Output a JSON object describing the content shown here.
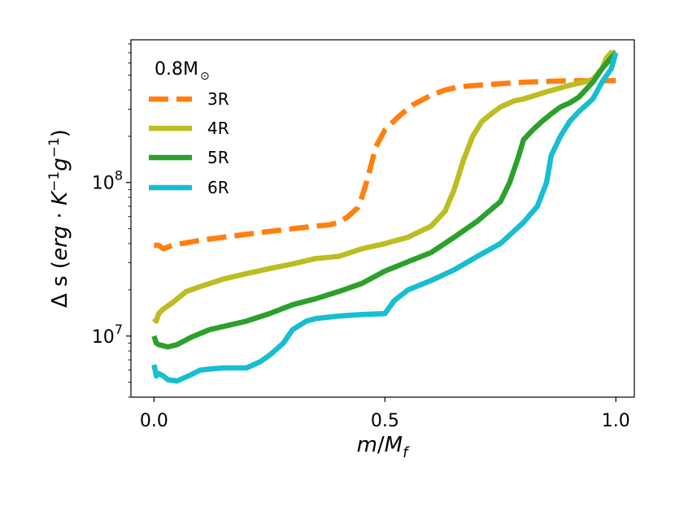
{
  "chart_data": {
    "type": "line",
    "xlabel": {
      "m": "m",
      "slash": "/",
      "M": "M",
      "sub": "f"
    },
    "ylabel": {
      "prefix": "Δ s (",
      "erg": "erg",
      "dot": " · ",
      "K": "K",
      "Kexp": "−1",
      "g": "g",
      "gexp": "−1",
      "suffix": ")"
    },
    "xlim": [
      -0.05,
      1.04
    ],
    "ylim": [
      4000000,
      850000000
    ],
    "yscale": "log",
    "xticks": [
      {
        "value": 0.0,
        "label": "0.0"
      },
      {
        "value": 0.5,
        "label": "0.5"
      },
      {
        "value": 1.0,
        "label": "1.0"
      }
    ],
    "yticks": [
      {
        "value": 10000000,
        "base": "10",
        "exp": "7"
      },
      {
        "value": 100000000,
        "base": "10",
        "exp": "8"
      }
    ],
    "legend": {
      "title": {
        "text": "0.8M",
        "symbol": "⊙"
      },
      "placement": "upper-left",
      "entries": [
        "3R",
        "4R",
        "5R",
        "6R"
      ]
    },
    "series": [
      {
        "name": "3R",
        "color": "#ff7f0e",
        "dash": "dashed",
        "x": [
          0.0,
          0.01,
          0.02,
          0.04,
          0.06,
          0.1,
          0.15,
          0.2,
          0.25,
          0.3,
          0.35,
          0.38,
          0.4,
          0.42,
          0.44,
          0.45,
          0.46,
          0.47,
          0.48,
          0.5,
          0.53,
          0.56,
          0.6,
          0.63,
          0.66,
          0.7,
          0.75,
          0.8,
          0.85,
          0.9,
          0.95,
          1.0
        ],
        "y": [
          39000000,
          39000000,
          37000000,
          39000000,
          40000000,
          42000000,
          44000000,
          46000000,
          48000000,
          50000000,
          52000000,
          53000000,
          55000000,
          60000000,
          68000000,
          80000000,
          100000000,
          130000000,
          170000000,
          220000000,
          270000000,
          320000000,
          370000000,
          400000000,
          420000000,
          430000000,
          440000000,
          450000000,
          455000000,
          460000000,
          460000000,
          460000000
        ]
      },
      {
        "name": "4R",
        "color": "#bcbd22",
        "dash": "solid",
        "x": [
          0.0,
          0.005,
          0.01,
          0.02,
          0.04,
          0.07,
          0.1,
          0.15,
          0.2,
          0.25,
          0.3,
          0.35,
          0.4,
          0.45,
          0.5,
          0.55,
          0.6,
          0.63,
          0.65,
          0.67,
          0.69,
          0.71,
          0.73,
          0.75,
          0.78,
          0.8,
          0.85,
          0.9,
          0.93,
          0.95,
          0.97,
          0.98,
          0.99,
          1.0
        ],
        "y": [
          13000000,
          12500000,
          14000000,
          15000000,
          16500000,
          19500000,
          21000000,
          23500000,
          25500000,
          27500000,
          29500000,
          32000000,
          33000000,
          37000000,
          40000000,
          44000000,
          52000000,
          65000000,
          90000000,
          140000000,
          200000000,
          250000000,
          280000000,
          310000000,
          340000000,
          350000000,
          390000000,
          430000000,
          450000000,
          470000000,
          550000000,
          650000000,
          700000000,
          700000000
        ]
      },
      {
        "name": "5R",
        "color": "#2ca02c",
        "dash": "solid",
        "x": [
          0.0,
          0.005,
          0.01,
          0.03,
          0.05,
          0.08,
          0.12,
          0.2,
          0.25,
          0.3,
          0.35,
          0.4,
          0.45,
          0.5,
          0.55,
          0.6,
          0.65,
          0.7,
          0.75,
          0.77,
          0.79,
          0.8,
          0.82,
          0.84,
          0.86,
          0.88,
          0.9,
          0.92,
          0.95,
          0.97,
          0.99,
          1.0
        ],
        "y": [
          10000000,
          9000000,
          8800000,
          8500000,
          8800000,
          9800000,
          11000000,
          12500000,
          14000000,
          16000000,
          17500000,
          19500000,
          22000000,
          26500000,
          30500000,
          35000000,
          44000000,
          56000000,
          75000000,
          100000000,
          150000000,
          190000000,
          220000000,
          250000000,
          280000000,
          310000000,
          330000000,
          360000000,
          450000000,
          550000000,
          650000000,
          700000000
        ]
      },
      {
        "name": "6R",
        "color": "#17becf",
        "dash": "solid",
        "x": [
          0.0,
          0.005,
          0.01,
          0.02,
          0.03,
          0.05,
          0.08,
          0.1,
          0.12,
          0.15,
          0.2,
          0.23,
          0.25,
          0.28,
          0.3,
          0.33,
          0.35,
          0.38,
          0.4,
          0.45,
          0.5,
          0.52,
          0.55,
          0.6,
          0.65,
          0.7,
          0.75,
          0.8,
          0.83,
          0.85,
          0.86,
          0.88,
          0.9,
          0.92,
          0.95,
          0.97,
          0.99,
          1.0
        ],
        "y": [
          6500000,
          5500000,
          5700000,
          5500000,
          5200000,
          5100000,
          5600000,
          6000000,
          6100000,
          6200000,
          6200000,
          6800000,
          7500000,
          9000000,
          11000000,
          12500000,
          13000000,
          13300000,
          13500000,
          13800000,
          14000000,
          17000000,
          20000000,
          23000000,
          27000000,
          33000000,
          40000000,
          55000000,
          70000000,
          100000000,
          150000000,
          200000000,
          250000000,
          290000000,
          350000000,
          450000000,
          550000000,
          700000000
        ]
      }
    ]
  }
}
